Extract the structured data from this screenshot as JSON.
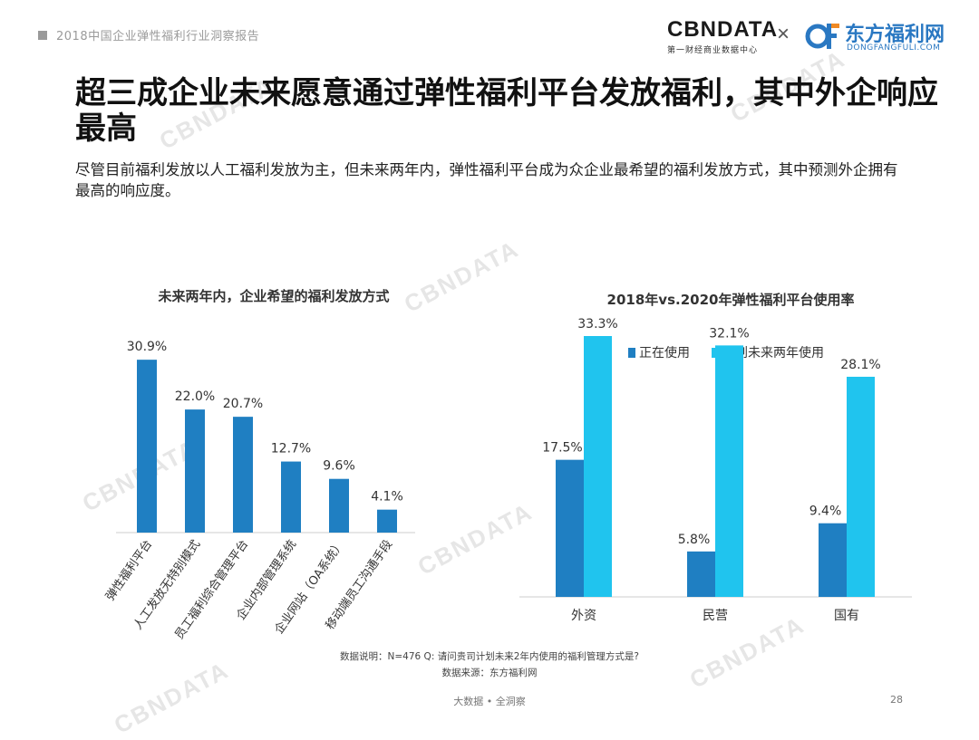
{
  "header": {
    "report_title": "2018中国企业弹性福利行业洞察报告"
  },
  "logos": {
    "cbndata_name": "CBNDATA",
    "cbndata_sub": "第一财经商业数据中心",
    "separator": "×",
    "dongfang_cn": "东方福利网",
    "dongfang_en": "DONGFANGFULI.COM"
  },
  "page_title": "超三成企业未来愿意通过弹性福利平台发放福利，其中外企响应最高",
  "description": "尽管目前福利发放以人工福利发放为主，但未来两年内，弹性福利平台成为众企业最希望的福利发放方式，其中预测外企拥有最高的响应度。",
  "watermark": "CBNDATA",
  "colors": {
    "dark_blue": "#1f7fc2",
    "light_blue": "#20c4ee",
    "axis": "#cccccc"
  },
  "chart_data": [
    {
      "type": "bar",
      "title": "未来两年内，企业希望的福利发放方式",
      "categories": [
        "弹性福利平台",
        "人工发放无特别模式",
        "员工福利综合管理平台",
        "企业内部管理系统",
        "企业网站（OA系统）",
        "移动端员工沟通手段"
      ],
      "values": [
        30.9,
        22.0,
        20.7,
        12.7,
        9.6,
        4.1
      ],
      "labels": [
        "30.9%",
        "22.0%",
        "20.7%",
        "12.7%",
        "9.6%",
        "4.1%"
      ],
      "unit": "%",
      "ylim": [
        0,
        34
      ]
    },
    {
      "type": "bar",
      "title": "2018年vs.2020年弹性福利平台使用率",
      "categories": [
        "外资",
        "民营",
        "国有"
      ],
      "series": [
        {
          "name": "正在使用",
          "values": [
            17.5,
            5.8,
            9.4
          ],
          "labels": [
            "17.5%",
            "5.8%",
            "9.4%"
          ],
          "color": "#1f7fc2"
        },
        {
          "name": "计划未来两年使用",
          "values": [
            33.3,
            32.1,
            28.1
          ],
          "labels": [
            "33.3%",
            "32.1%",
            "28.1%"
          ],
          "color": "#20c4ee"
        }
      ],
      "legend": "top-left",
      "unit": "%",
      "ylim": [
        0,
        37
      ]
    }
  ],
  "footnotes": {
    "note": "数据说明：N=476 Q: 请问贵司计划未来2年内使用的福利管理方式是?",
    "source": "数据来源：东方福利网"
  },
  "footer": {
    "center": "大数据 • 全洞察",
    "page": "28"
  }
}
